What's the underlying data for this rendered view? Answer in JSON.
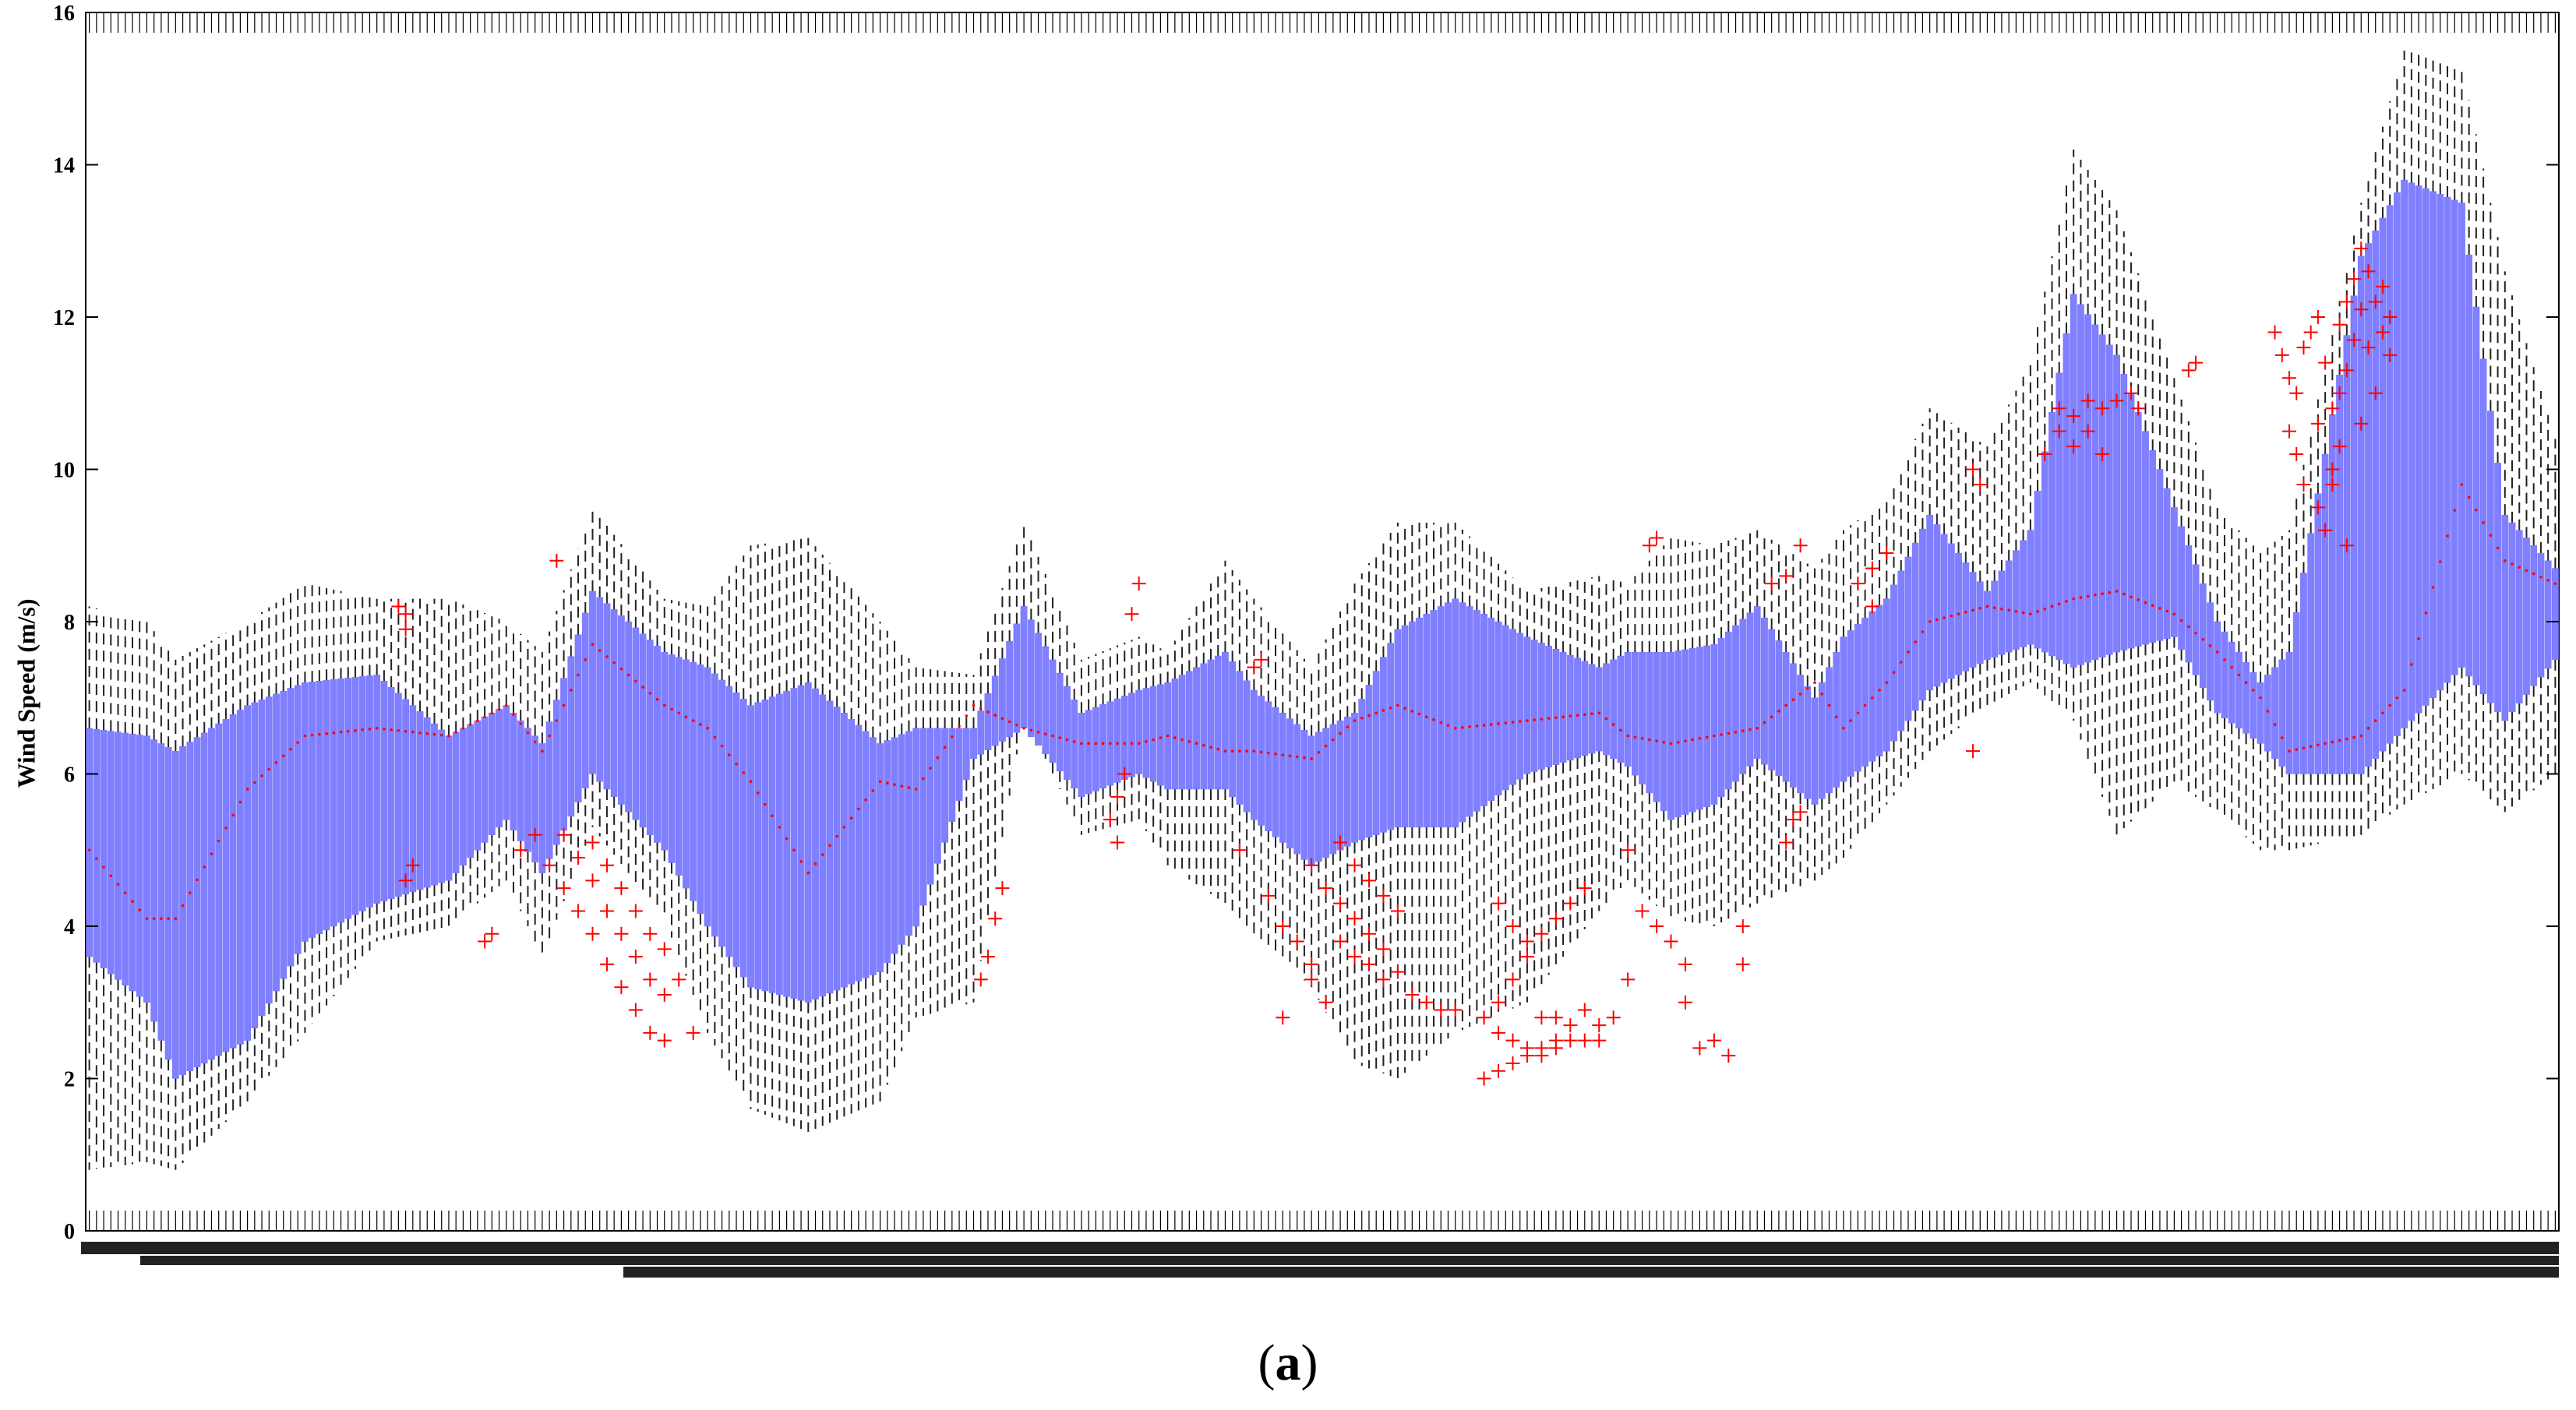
{
  "chart_data": {
    "type": "box",
    "title": "",
    "xlabel": "",
    "ylabel": "Wind Speed (m/s)",
    "ylim": [
      0,
      16
    ],
    "yticks": [
      0,
      2,
      4,
      6,
      8,
      10,
      12,
      14,
      16
    ],
    "grid": false,
    "legend": "none",
    "n_boxes": 344,
    "colors": {
      "box_fill": "#7f7fff",
      "median_marker": "#ff0000",
      "outlier_marker": "#ff0000",
      "whisker": "#000000"
    },
    "profile": {
      "positions": [
        0,
        8,
        12,
        22,
        30,
        40,
        50,
        58,
        63,
        70,
        80,
        86,
        92,
        100,
        110,
        115,
        123,
        130,
        138,
        146,
        150,
        158,
        162,
        170,
        176,
        182,
        190,
        200,
        210,
        214,
        220,
        226,
        232,
        240,
        244,
        250,
        256,
        264,
        270,
        276,
        282,
        290,
        296,
        302,
        306,
        316,
        322,
        330,
        336,
        343
      ],
      "q1": [
        3.6,
        3.0,
        2.0,
        2.5,
        3.8,
        4.3,
        4.6,
        5.4,
        4.7,
        6.0,
        5.0,
        4.0,
        3.2,
        3.0,
        3.4,
        4.0,
        6.2,
        6.6,
        5.7,
        6.0,
        5.8,
        5.8,
        5.4,
        4.8,
        5.1,
        5.3,
        5.3,
        6.0,
        6.3,
        6.1,
        5.4,
        5.6,
        6.2,
        5.6,
        5.9,
        6.3,
        7.1,
        7.5,
        7.7,
        7.4,
        7.6,
        7.8,
        6.8,
        6.4,
        6.0,
        6.0,
        6.6,
        7.4,
        6.7,
        7.5
      ],
      "median": [
        5.0,
        4.1,
        4.1,
        5.8,
        6.5,
        6.6,
        6.5,
        6.9,
        6.3,
        7.7,
        6.9,
        6.6,
        5.9,
        4.7,
        5.9,
        5.8,
        6.9,
        6.6,
        6.4,
        6.4,
        6.5,
        6.3,
        6.3,
        6.2,
        6.7,
        6.9,
        6.6,
        6.7,
        6.8,
        6.5,
        6.4,
        6.5,
        6.6,
        7.2,
        6.6,
        7.2,
        8.0,
        8.2,
        8.1,
        8.3,
        8.4,
        8.1,
        7.6,
        7.0,
        6.3,
        6.5,
        7.1,
        9.8,
        8.8,
        8.5
      ],
      "q3": [
        6.6,
        6.5,
        6.3,
        6.9,
        7.2,
        7.3,
        6.5,
        6.9,
        6.4,
        8.4,
        7.6,
        7.4,
        6.9,
        7.2,
        6.4,
        6.6,
        6.6,
        8.2,
        6.8,
        7.1,
        7.2,
        7.6,
        7.1,
        6.5,
        6.8,
        7.9,
        8.3,
        7.8,
        7.4,
        7.6,
        7.6,
        7.7,
        8.2,
        7.0,
        7.8,
        8.3,
        9.4,
        8.4,
        9.2,
        12.3,
        11.5,
        9.5,
        8.0,
        7.2,
        7.6,
        12.8,
        13.8,
        13.5,
        9.4,
        8.7
      ],
      "upper_whisker": [
        8.2,
        8.0,
        7.5,
        8.0,
        8.5,
        8.3,
        8.3,
        8.0,
        7.6,
        9.5,
        8.3,
        8.2,
        9.0,
        9.1,
        8.0,
        7.4,
        7.3,
        9.3,
        7.5,
        7.8,
        7.6,
        8.8,
        8.3,
        7.4,
        8.5,
        9.3,
        9.3,
        8.4,
        8.6,
        8.5,
        9.1,
        9.0,
        9.2,
        8.7,
        9.2,
        9.6,
        10.8,
        10.3,
        11.4,
        14.2,
        13.4,
        11.2,
        9.5,
        8.9,
        9.2,
        13.5,
        15.5,
        15.3,
        12.6,
        10.4
      ],
      "lower_whisker": [
        0.8,
        0.9,
        0.8,
        1.7,
        2.6,
        3.8,
        4.0,
        4.6,
        3.6,
        5.3,
        4.1,
        2.6,
        1.6,
        1.3,
        1.7,
        2.8,
        3.0,
        6.8,
        5.2,
        5.4,
        4.8,
        4.3,
        3.9,
        3.2,
        2.2,
        2.0,
        2.6,
        3.0,
        4.2,
        4.6,
        4.1,
        4.0,
        4.3,
        4.6,
        4.9,
        5.6,
        6.3,
        6.9,
        7.2,
        6.7,
        5.2,
        5.9,
        5.5,
        5.0,
        5.0,
        5.2,
        5.6,
        6.0,
        5.5,
        6.0
      ]
    },
    "outliers": [
      [
        43,
        8.2
      ],
      [
        44,
        7.9
      ],
      [
        44,
        8.1
      ],
      [
        45,
        4.8
      ],
      [
        44,
        4.6
      ],
      [
        55,
        3.8
      ],
      [
        56,
        3.9
      ],
      [
        60,
        5.0
      ],
      [
        65,
        8.8
      ],
      [
        62,
        5.2
      ],
      [
        64,
        4.8
      ],
      [
        66,
        4.5
      ],
      [
        68,
        4.2
      ],
      [
        70,
        3.9
      ],
      [
        72,
        3.5
      ],
      [
        74,
        3.2
      ],
      [
        76,
        2.9
      ],
      [
        78,
        2.6
      ],
      [
        80,
        2.5
      ],
      [
        66,
        5.2
      ],
      [
        68,
        4.9
      ],
      [
        70,
        4.6
      ],
      [
        72,
        4.2
      ],
      [
        74,
        3.9
      ],
      [
        76,
        3.6
      ],
      [
        78,
        3.3
      ],
      [
        80,
        3.1
      ],
      [
        70,
        5.1
      ],
      [
        72,
        4.8
      ],
      [
        74,
        4.5
      ],
      [
        76,
        4.2
      ],
      [
        78,
        3.9
      ],
      [
        80,
        3.7
      ],
      [
        82,
        3.3
      ],
      [
        84,
        2.6
      ],
      [
        126,
        4.1
      ],
      [
        125,
        3.6
      ],
      [
        124,
        3.3
      ],
      [
        127,
        4.5
      ],
      [
        142,
        5.4
      ],
      [
        143,
        5.7
      ],
      [
        144,
        6.0
      ],
      [
        145,
        8.1
      ],
      [
        146,
        8.5
      ],
      [
        143,
        5.1
      ],
      [
        162,
        7.4
      ],
      [
        163,
        7.5
      ],
      [
        160,
        5.0
      ],
      [
        164,
        4.4
      ],
      [
        166,
        4.0
      ],
      [
        168,
        3.8
      ],
      [
        170,
        3.5
      ],
      [
        166,
        2.8
      ],
      [
        170,
        3.3
      ],
      [
        172,
        3.0
      ],
      [
        174,
        3.8
      ],
      [
        176,
        3.6
      ],
      [
        178,
        3.5
      ],
      [
        170,
        4.8
      ],
      [
        172,
        4.5
      ],
      [
        174,
        4.3
      ],
      [
        176,
        4.1
      ],
      [
        178,
        3.9
      ],
      [
        180,
        3.7
      ],
      [
        182,
        3.4
      ],
      [
        184,
        3.1
      ],
      [
        186,
        3.0
      ],
      [
        174,
        5.1
      ],
      [
        176,
        4.8
      ],
      [
        178,
        4.6
      ],
      [
        180,
        4.4
      ],
      [
        182,
        4.2
      ],
      [
        180,
        3.3
      ],
      [
        188,
        2.9
      ],
      [
        190,
        2.9
      ],
      [
        194,
        2.0
      ],
      [
        196,
        2.1
      ],
      [
        198,
        2.2
      ],
      [
        200,
        2.3
      ],
      [
        202,
        2.4
      ],
      [
        204,
        2.5
      ],
      [
        206,
        2.5
      ],
      [
        208,
        2.5
      ],
      [
        194,
        2.8
      ],
      [
        196,
        3.0
      ],
      [
        198,
        3.3
      ],
      [
        200,
        3.6
      ],
      [
        202,
        3.9
      ],
      [
        204,
        4.1
      ],
      [
        206,
        4.3
      ],
      [
        208,
        4.5
      ],
      [
        196,
        4.3
      ],
      [
        198,
        4.0
      ],
      [
        200,
        3.8
      ],
      [
        202,
        2.8
      ],
      [
        204,
        2.8
      ],
      [
        206,
        2.7
      ],
      [
        208,
        2.9
      ],
      [
        210,
        2.7
      ],
      [
        196,
        2.6
      ],
      [
        198,
        2.5
      ],
      [
        200,
        2.4
      ],
      [
        202,
        2.3
      ],
      [
        204,
        2.4
      ],
      [
        210,
        2.5
      ],
      [
        212,
        2.8
      ],
      [
        214,
        3.3
      ],
      [
        218,
        9.1
      ],
      [
        217,
        9.0
      ],
      [
        214,
        5.0
      ],
      [
        216,
        4.2
      ],
      [
        218,
        4.0
      ],
      [
        220,
        3.8
      ],
      [
        222,
        3.5
      ],
      [
        222,
        3.0
      ],
      [
        224,
        2.4
      ],
      [
        226,
        2.5
      ],
      [
        228,
        2.3
      ],
      [
        230,
        3.5
      ],
      [
        230,
        4.0
      ],
      [
        234,
        8.5
      ],
      [
        236,
        8.6
      ],
      [
        238,
        9.0
      ],
      [
        237,
        5.4
      ],
      [
        236,
        5.1
      ],
      [
        238,
        5.5
      ],
      [
        246,
        8.5
      ],
      [
        248,
        8.7
      ],
      [
        248,
        8.2
      ],
      [
        250,
        8.9
      ],
      [
        262,
        6.3
      ],
      [
        262,
        10.0
      ],
      [
        263,
        9.8
      ],
      [
        272,
        10.2
      ],
      [
        274,
        10.5
      ],
      [
        276,
        10.7
      ],
      [
        278,
        10.9
      ],
      [
        280,
        10.8
      ],
      [
        276,
        10.3
      ],
      [
        278,
        10.5
      ],
      [
        280,
        10.2
      ],
      [
        282,
        10.9
      ],
      [
        274,
        10.8
      ],
      [
        284,
        11.0
      ],
      [
        285,
        10.8
      ],
      [
        292,
        11.3
      ],
      [
        293,
        11.4
      ],
      [
        304,
        11.8
      ],
      [
        305,
        11.5
      ],
      [
        306,
        11.2
      ],
      [
        307,
        11.0
      ],
      [
        308,
        11.6
      ],
      [
        309,
        11.8
      ],
      [
        310,
        12.0
      ],
      [
        311,
        11.4
      ],
      [
        312,
        10.8
      ],
      [
        306,
        10.5
      ],
      [
        307,
        10.2
      ],
      [
        308,
        9.8
      ],
      [
        310,
        10.6
      ],
      [
        312,
        10.0
      ],
      [
        313,
        11.9
      ],
      [
        314,
        12.2
      ],
      [
        315,
        12.5
      ],
      [
        316,
        12.9
      ],
      [
        317,
        12.6
      ],
      [
        318,
        12.2
      ],
      [
        319,
        11.8
      ],
      [
        320,
        11.5
      ],
      [
        313,
        11.0
      ],
      [
        314,
        11.3
      ],
      [
        315,
        11.7
      ],
      [
        316,
        12.1
      ],
      [
        317,
        11.6
      ],
      [
        318,
        11.0
      ],
      [
        319,
        12.4
      ],
      [
        320,
        12.0
      ],
      [
        310,
        9.5
      ],
      [
        311,
        9.2
      ],
      [
        312,
        9.8
      ],
      [
        313,
        10.3
      ],
      [
        314,
        9.0
      ],
      [
        316,
        10.6
      ]
    ]
  },
  "caption": {
    "open": "(",
    "letter": "a",
    "close": ")"
  }
}
